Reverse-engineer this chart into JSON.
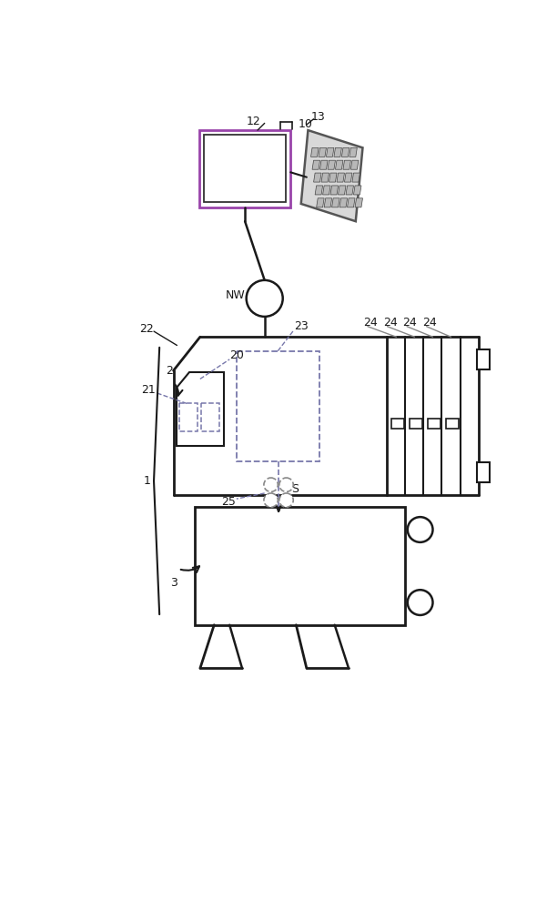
{
  "bg": "#ffffff",
  "lc": "#1a1a1a",
  "dc": "#7777aa",
  "gc": "#888888",
  "figsize": [
    6.01,
    10.0
  ],
  "dpi": 100
}
